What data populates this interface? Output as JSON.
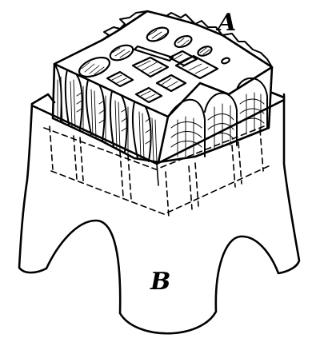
{
  "figure": {
    "label_a": "A",
    "label_b": "B",
    "colors": {
      "ink": "#000000",
      "paper": "#ffffff"
    }
  }
}
